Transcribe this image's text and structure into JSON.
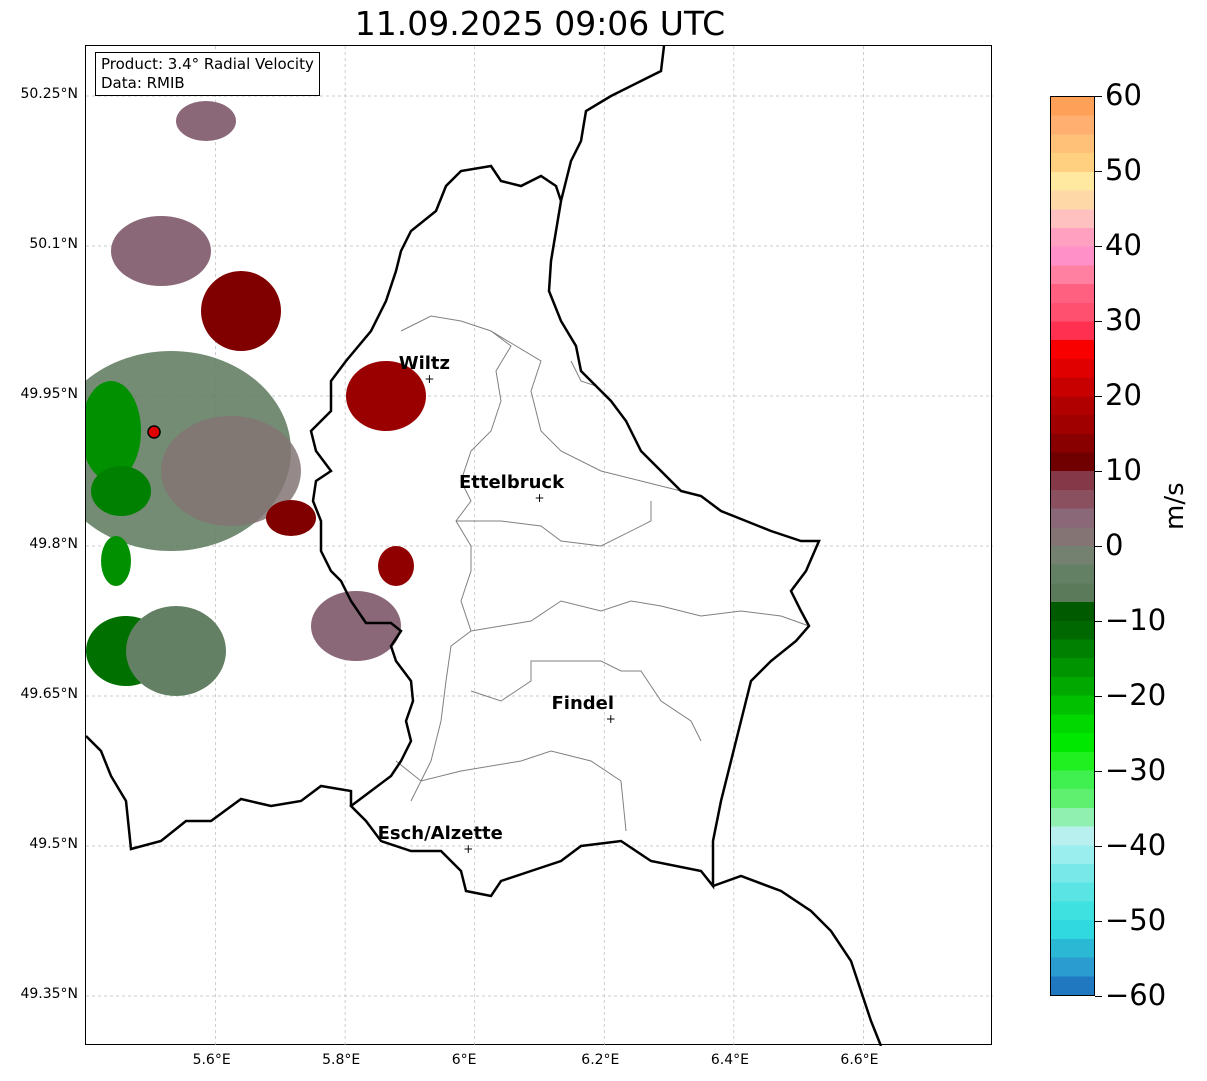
{
  "title": "11.09.2025 09:06 UTC",
  "info": {
    "product": "Product: 3.4° Radial Velocity",
    "data": "Data: RMIB"
  },
  "x_ticks": [
    {
      "lon": 5.6,
      "label": "5.6°E"
    },
    {
      "lon": 5.8,
      "label": "5.8°E"
    },
    {
      "lon": 6.0,
      "label": "6°E"
    },
    {
      "lon": 6.2,
      "label": "6.2°E"
    },
    {
      "lon": 6.4,
      "label": "6.4°E"
    },
    {
      "lon": 6.6,
      "label": "6.6°E"
    }
  ],
  "y_ticks": [
    {
      "lat": 50.25,
      "label": "50.25°N"
    },
    {
      "lat": 50.1,
      "label": "50.1°N"
    },
    {
      "lat": 49.95,
      "label": "49.95°N"
    },
    {
      "lat": 49.8,
      "label": "49.8°N"
    },
    {
      "lat": 49.65,
      "label": "49.65°N"
    },
    {
      "lat": 49.5,
      "label": "49.5°N"
    },
    {
      "lat": 49.35,
      "label": "49.35°N"
    }
  ],
  "extent": {
    "lon": [
      5.4,
      6.8
    ],
    "lat": [
      49.3,
      50.3
    ]
  },
  "cities": [
    {
      "name": "Wiltz",
      "lon": 5.93,
      "lat": 49.967
    },
    {
      "name": "Ettelbruck",
      "lon": 6.1,
      "lat": 49.848
    },
    {
      "name": "Findel",
      "lon": 6.21,
      "lat": 49.627
    },
    {
      "name": "Esch/Alzette",
      "lon": 5.99,
      "lat": 49.497
    }
  ],
  "radar": {
    "lon": 5.505,
    "lat": 49.914
  },
  "colorbar": {
    "label": "m/s",
    "min": -60,
    "max": 60,
    "ticks": [
      {
        "v": 60,
        "label": "60"
      },
      {
        "v": 50,
        "label": "50"
      },
      {
        "v": 40,
        "label": "40"
      },
      {
        "v": 30,
        "label": "30"
      },
      {
        "v": 20,
        "label": "20"
      },
      {
        "v": 10,
        "label": "10"
      },
      {
        "v": 0,
        "label": "0"
      },
      {
        "v": -10,
        "label": "−10"
      },
      {
        "v": -20,
        "label": "−20"
      },
      {
        "v": -30,
        "label": "−30"
      },
      {
        "v": -40,
        "label": "−40"
      },
      {
        "v": -50,
        "label": "−50"
      },
      {
        "v": -60,
        "label": "−60"
      }
    ],
    "colors": [
      "#1f78c0",
      "#2a9cd0",
      "#2ab8d4",
      "#30d8e0",
      "#3ee0e0",
      "#5ae4e4",
      "#78e8e8",
      "#9aeeee",
      "#b8f0f0",
      "#90f0b0",
      "#60f070",
      "#40f050",
      "#20f020",
      "#00e800",
      "#00d800",
      "#00c000",
      "#00a800",
      "#009400",
      "#008000",
      "#006800",
      "#005a00",
      "#5a7a5a",
      "#648064",
      "#748070",
      "#847474",
      "#8a6878",
      "#8a5060",
      "#843848",
      "#700000",
      "#880000",
      "#a00000",
      "#b00000",
      "#c80000",
      "#e00000",
      "#f80000",
      "#ff3050",
      "#ff5070",
      "#ff6080",
      "#ff80a0",
      "#ff90c8",
      "#ffa0c0",
      "#ffc0c0",
      "#ffd8a8",
      "#ffe8a0",
      "#ffd080",
      "#ffc078",
      "#ffb070",
      "#ffa058"
    ]
  }
}
